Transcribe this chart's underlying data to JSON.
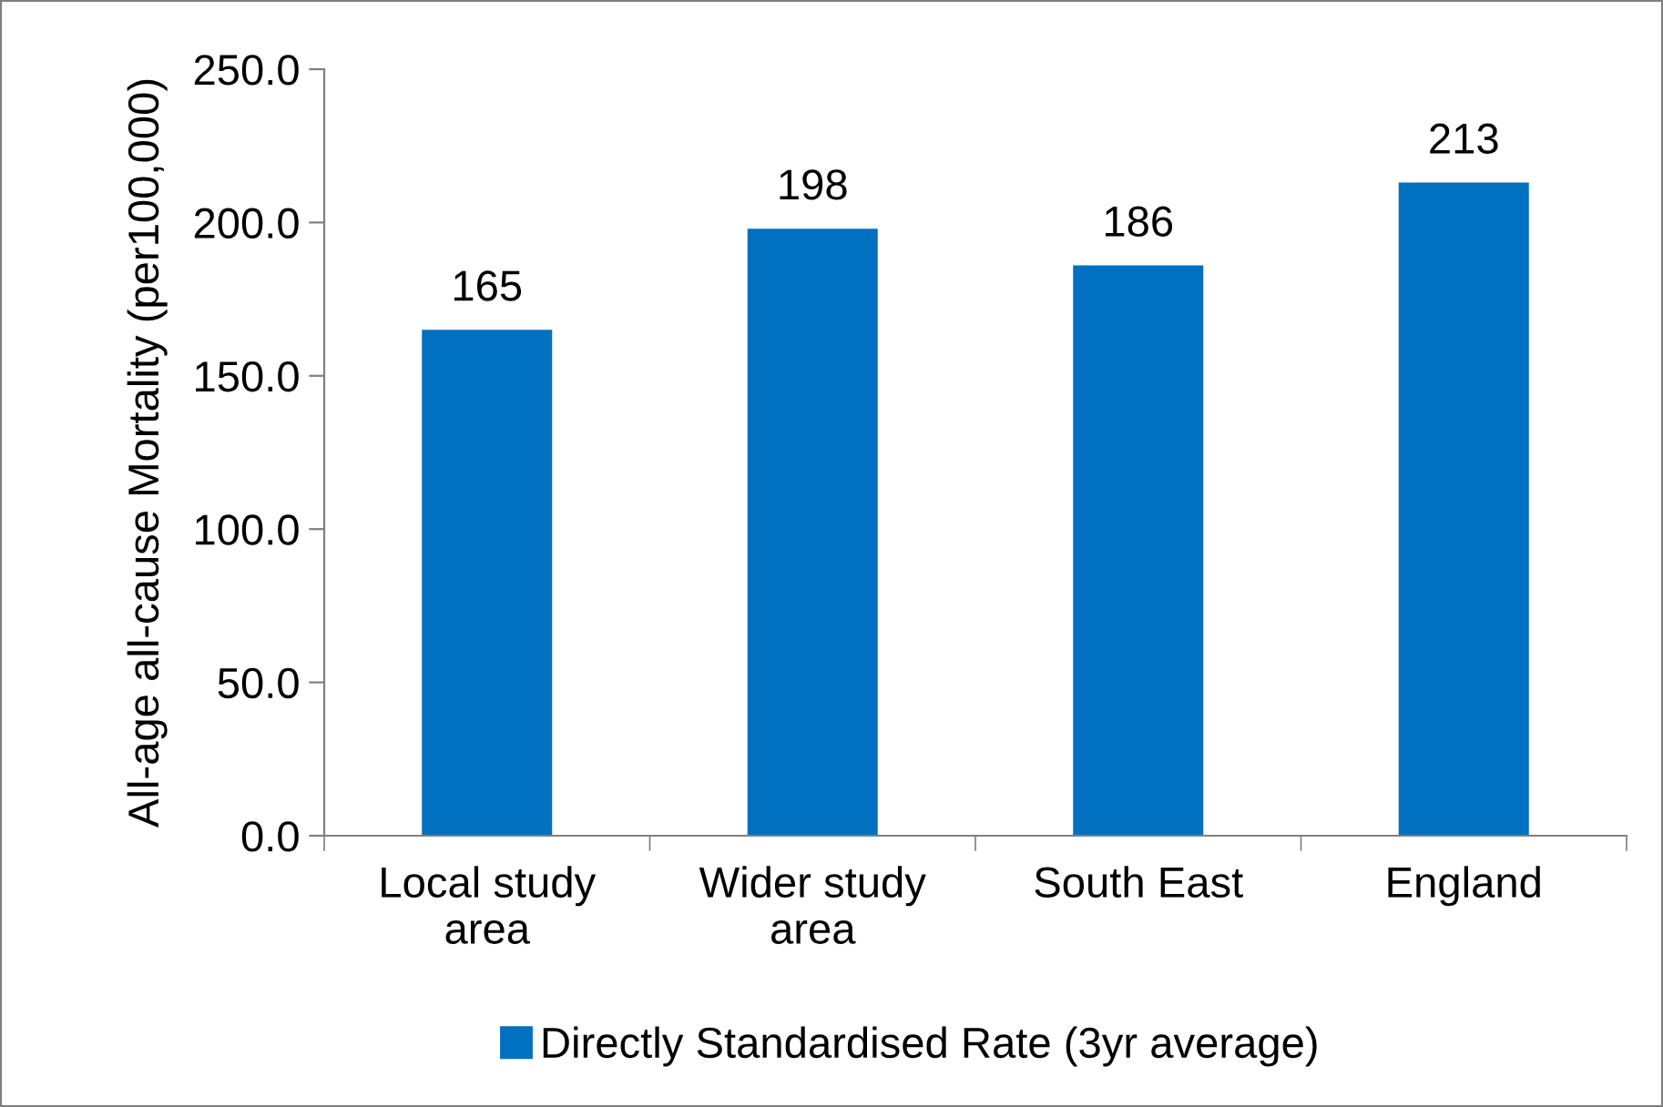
{
  "chart_data": {
    "type": "bar",
    "ylabel": "All-age all-cause Mortality (per100,000)",
    "categories": [
      "Local study\narea",
      "Wider study\narea",
      "South East",
      "England"
    ],
    "series": [
      {
        "name": "Directly Standardised Rate (3yr average)",
        "color": "#0070c0",
        "values": [
          165,
          198,
          186,
          213
        ]
      }
    ],
    "ylim": [
      0,
      250
    ],
    "yticks": [
      {
        "value": 0,
        "label": "0.0"
      },
      {
        "value": 50,
        "label": "50.0"
      },
      {
        "value": 100,
        "label": "100.0"
      },
      {
        "value": 150,
        "label": "150.0"
      },
      {
        "value": 200,
        "label": "200.0"
      },
      {
        "value": 250,
        "label": "250.0"
      }
    ],
    "data_labels": true,
    "grid": false,
    "legend": "bottom"
  }
}
